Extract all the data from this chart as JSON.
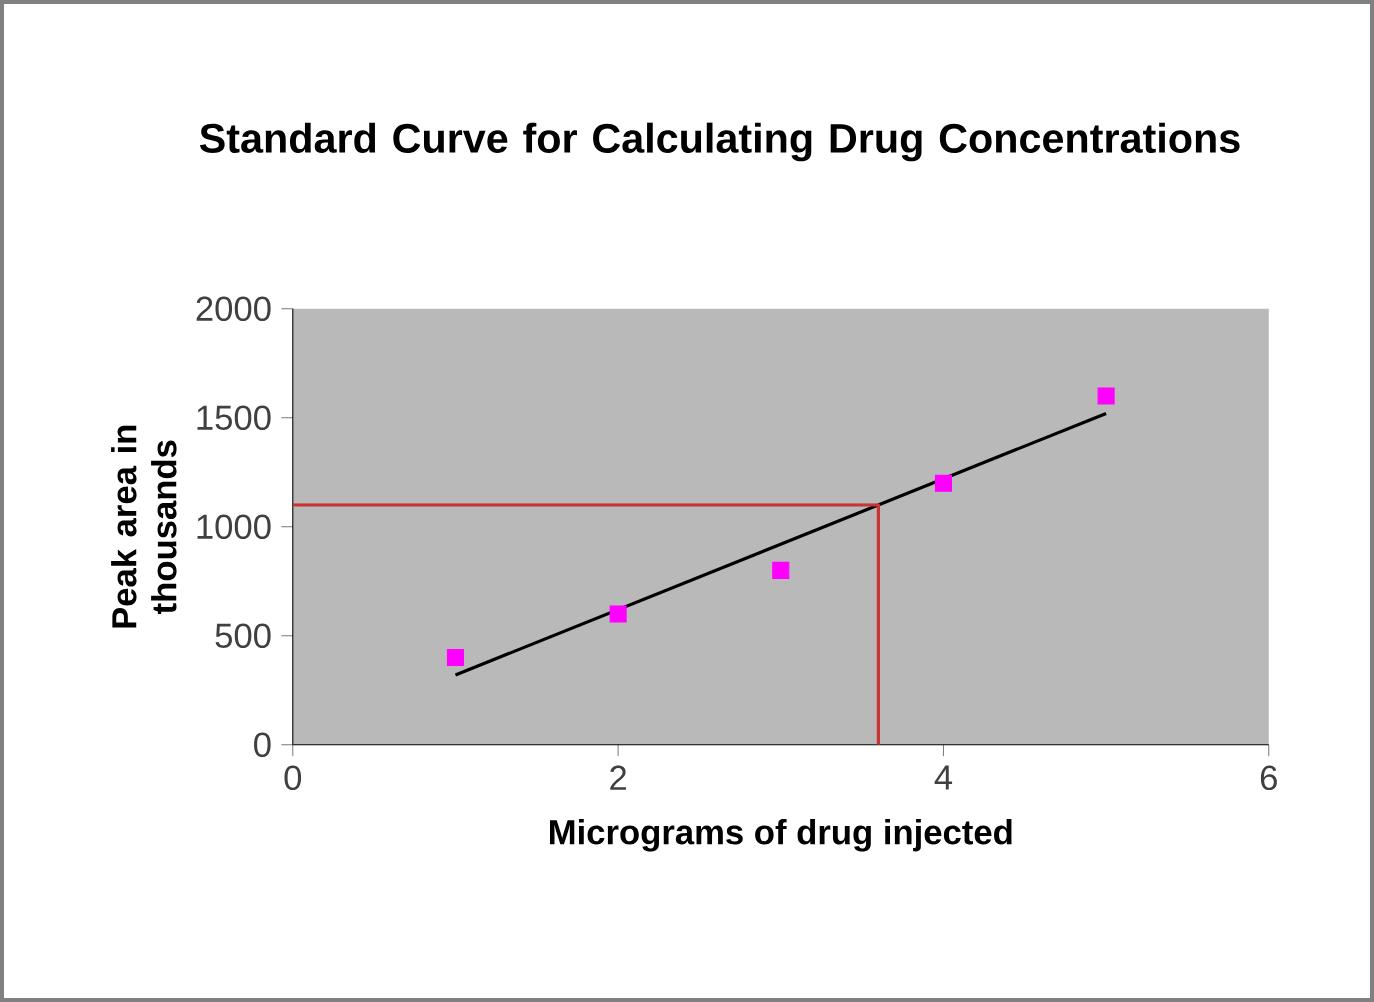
{
  "chart_data": {
    "type": "scatter",
    "title": "Standard Curve for Calculating Drug Concentrations",
    "xlabel": "Micrograms of drug injected",
    "ylabel": "Peak area in thousands",
    "xlim": [
      0,
      6
    ],
    "xticks": [
      0,
      2,
      4,
      6
    ],
    "ylim": [
      0,
      2000
    ],
    "yticks": [
      0,
      500,
      1000,
      1500,
      2000
    ],
    "series": [
      {
        "color": "#ff00ff",
        "marker": "square",
        "x": [
          1,
          2,
          3,
          4,
          5
        ],
        "values": [
          400,
          600,
          800,
          1200,
          1600
        ]
      },
      {
        "type": "line",
        "color": "#000000",
        "marker": "none",
        "x": [
          1,
          5
        ],
        "values": [
          320,
          1520
        ]
      },
      {
        "type": "line",
        "color": "#cc3333",
        "marker": "none",
        "x": [
          0,
          3.6,
          3.6
        ],
        "values": [
          1100,
          1100,
          0
        ]
      }
    ]
  }
}
